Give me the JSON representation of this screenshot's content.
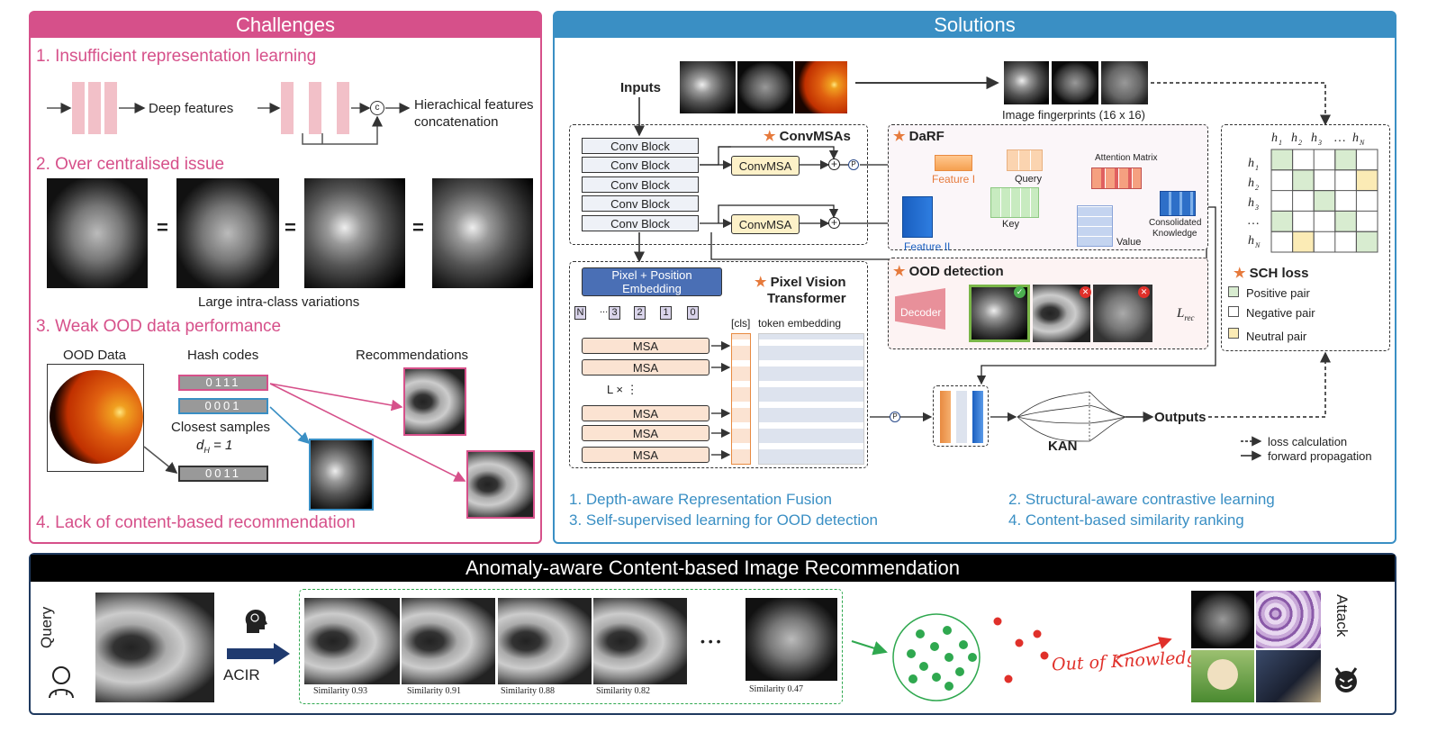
{
  "challenges": {
    "title": "Challenges",
    "item1": "1. Insufficient representation learning",
    "deep_features": "Deep features",
    "hier_line1": "Hierachical features",
    "hier_line2": "concatenation",
    "concat_symbol": "c",
    "item2": "2. Over centralised issue",
    "equals": "=",
    "intra_class": "Large intra-class variations",
    "item3": "3. Weak OOD data performance",
    "ood_data": "OOD Data",
    "hash_codes": "Hash codes",
    "recommendations": "Recommendations",
    "hash1": "0111",
    "hash2": "0001",
    "hash3": "0011",
    "closest": "Closest samples",
    "dh": "d",
    "dh_sub": "H",
    "dh_val": " = 1",
    "question": "????",
    "item4": "4. Lack of content-based recommendation"
  },
  "solutions": {
    "title": "Solutions",
    "inputs": "Inputs",
    "fingerprints": "Image fingerprints (16 x 16)",
    "conv_block": "Conv Block",
    "convmsas": "ConvMSAs",
    "convmsa": "ConvMSA",
    "p_symbol": "P",
    "darf": "DaRF",
    "feature1": "Feature I",
    "feature2": "Feature II",
    "query": "Query",
    "key": "Key",
    "value": "Value",
    "attention_matrix": "Attention Matrix",
    "consolidated1": "Consolidated",
    "consolidated2": "Knowledge",
    "pixel_embed1": "Pixel + Position",
    "pixel_embed2": "Embedding",
    "pvt1": "Pixel Vision",
    "pvt2": "Transformer",
    "cls": "[cls]",
    "token_embedding": "token embedding",
    "tokens": [
      "N",
      "...",
      "3",
      "2",
      "1",
      "0"
    ],
    "msa": "MSA",
    "lx": "L ×",
    "vdots": "⋮",
    "ood_detection": "OOD detection",
    "decoder": "Decoder",
    "lrec": "L",
    "lrec_sub": "rec",
    "kan": "KAN",
    "outputs": "Outputs",
    "sch_loss": "SCH loss",
    "h_cols": [
      "h",
      "h",
      "h",
      "…",
      "h"
    ],
    "h_subs": [
      "1",
      "2",
      "3",
      "",
      "N"
    ],
    "h_rows": [
      "h",
      "h",
      "h",
      "…",
      "h"
    ],
    "positive": "Positive pair",
    "negative": "Negative pair",
    "neutral": "Neutral pair",
    "loss_calc": "loss calculation",
    "forward": "forward propagation",
    "sol1": "1.   Depth-aware Representation Fusion",
    "sol2": "2. Structural-aware contrastive learning",
    "sol3": "3.   Self-supervised learning for OOD detection",
    "sol4": "4. Content-based similarity ranking",
    "star": "★"
  },
  "bottom": {
    "title": "Anomaly-aware Content-based Image Recommendation",
    "query": "Query",
    "acir": "ACIR",
    "similarities": [
      "Similarity 0.93",
      "Similarity 0.91",
      "Similarity 0.88",
      "Similarity 0.82",
      "Similarity 0.47"
    ],
    "ellipsis": "• • •",
    "out_of_knowledge": "Out of Knowledge",
    "attack": "Attack"
  },
  "colors": {
    "pink": "#d6508a",
    "blue": "#3a8fc4",
    "green_cell": "#d8ecd0",
    "yellow_cell": "#fbebb5",
    "msa_fill": "#fbe3d2",
    "convmsa_fill": "#fdf1c8",
    "embed_fill": "#4a6fb5"
  }
}
